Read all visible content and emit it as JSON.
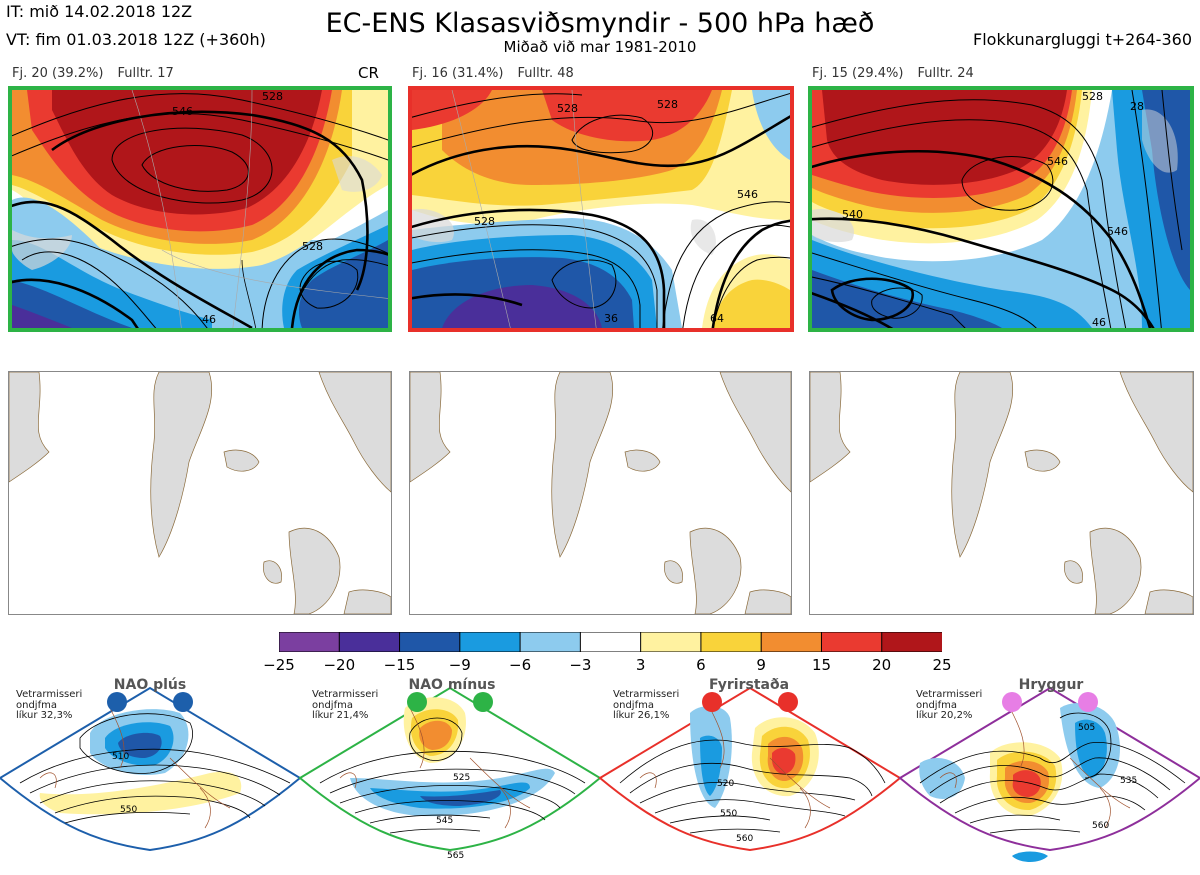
{
  "header": {
    "it": "IT: mið 14.02.2018 12Z",
    "vt": "VT: fim 01.03.2018 12Z  (+360h)",
    "title": "EC-ENS Klasasviðsmyndir - 500 hPa hæð",
    "subtitle": "Miðað við mar 1981-2010",
    "window": "Flokkunargluggi t+264-360"
  },
  "clusters": [
    {
      "fj": "Fj. 20 (39.2%)",
      "fulltr": "Fulltr. 17",
      "tag": "CR",
      "border": "#2db346",
      "contours": [
        "528",
        "546",
        "528",
        "46"
      ]
    },
    {
      "fj": "Fj. 16 (31.4%)",
      "fulltr": "Fulltr. 48",
      "tag": "",
      "border": "#e8302a",
      "contours": [
        "528",
        "528",
        "528",
        "546",
        "64",
        "36"
      ]
    },
    {
      "fj": "Fj. 15 (29.4%)",
      "fulltr": "Fulltr. 24",
      "tag": "",
      "border": "#2db346",
      "contours": [
        "528",
        "546",
        "540",
        "546",
        "28",
        "46"
      ]
    }
  ],
  "colorbar": {
    "labels": [
      "−25",
      "−20",
      "−15",
      "−9",
      "−6",
      "−3",
      "3",
      "6",
      "9",
      "15",
      "20",
      "25"
    ],
    "colors": [
      "#7b3fa0",
      "#4a2f9a",
      "#1f57a8",
      "#1a9be0",
      "#8dcbee",
      "#ffffff",
      "#fff2a0",
      "#f9d33a",
      "#f28d30",
      "#ea3a30",
      "#b0161a"
    ]
  },
  "regimes": [
    {
      "title": "NAO plús",
      "note": "Vetrarmisseri\nondjfma\nlíkur 32,3%",
      "border": "#1d5fab",
      "dot": "#1d5fab",
      "labels": [
        "510",
        "550"
      ]
    },
    {
      "title": "NAO mínus",
      "note": "Vetrarmisseri\nondjfma\nlíkur 21,4%",
      "border": "#2db346",
      "dot": "#2db346",
      "labels": [
        "525",
        "545",
        "565"
      ]
    },
    {
      "title": "Fyrirstaða",
      "note": "Vetrarmisseri\nondjfma\nlíkur 26,1%",
      "border": "#e8302a",
      "dot": "#e8302a",
      "labels": [
        "520",
        "550",
        "560"
      ]
    },
    {
      "title": "Hryggur",
      "note": "Vetrarmisseri\nondjfma\nlíkur 20,2%",
      "border": "#8e2f9b",
      "dot": "#e77ee5",
      "labels": [
        "505",
        "535",
        "560"
      ]
    }
  ]
}
